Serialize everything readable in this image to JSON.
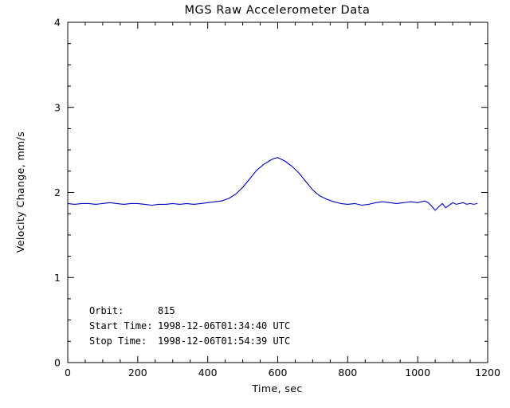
{
  "chart_data": {
    "type": "line",
    "title": "MGS Raw Accelerometer Data",
    "xlabel": "Time, sec",
    "ylabel": "Velocity Change, mm/s",
    "xlim": [
      0,
      1200
    ],
    "ylim": [
      0,
      4
    ],
    "xticks": [
      0,
      200,
      400,
      600,
      800,
      1000,
      1200
    ],
    "yticks": [
      0,
      1,
      2,
      3,
      4
    ],
    "x_minor_step": 50,
    "y_minor_step": 0.25,
    "grid": false,
    "legend": "none",
    "line_color": "#0000cd",
    "series": [
      {
        "name": "velocity-change",
        "x": [
          0,
          20,
          40,
          60,
          80,
          100,
          120,
          140,
          160,
          180,
          200,
          220,
          240,
          260,
          280,
          300,
          320,
          340,
          360,
          380,
          400,
          420,
          440,
          460,
          480,
          500,
          520,
          540,
          560,
          580,
          590,
          600,
          610,
          620,
          640,
          660,
          680,
          700,
          720,
          740,
          760,
          780,
          800,
          820,
          840,
          860,
          880,
          900,
          920,
          940,
          960,
          980,
          1000,
          1010,
          1020,
          1030,
          1040,
          1050,
          1060,
          1070,
          1080,
          1090,
          1100,
          1110,
          1120,
          1130,
          1140,
          1150,
          1160,
          1170
        ],
        "y": [
          1.87,
          1.86,
          1.87,
          1.87,
          1.86,
          1.87,
          1.88,
          1.87,
          1.86,
          1.87,
          1.87,
          1.86,
          1.85,
          1.86,
          1.86,
          1.87,
          1.86,
          1.87,
          1.86,
          1.87,
          1.88,
          1.89,
          1.9,
          1.93,
          1.98,
          2.06,
          2.16,
          2.26,
          2.33,
          2.38,
          2.4,
          2.41,
          2.39,
          2.37,
          2.31,
          2.23,
          2.13,
          2.03,
          1.96,
          1.92,
          1.89,
          1.87,
          1.86,
          1.87,
          1.85,
          1.86,
          1.88,
          1.89,
          1.88,
          1.87,
          1.88,
          1.89,
          1.88,
          1.89,
          1.9,
          1.88,
          1.84,
          1.79,
          1.83,
          1.87,
          1.82,
          1.85,
          1.88,
          1.86,
          1.87,
          1.88,
          1.86,
          1.87,
          1.86,
          1.87
        ]
      }
    ],
    "annotations": [
      {
        "label": "Orbit:",
        "value": "815"
      },
      {
        "label": "Start Time:",
        "value": "1998-12-06T01:34:40 UTC"
      },
      {
        "label": "Stop Time:",
        "value": "1998-12-06T01:54:39 UTC"
      }
    ]
  }
}
